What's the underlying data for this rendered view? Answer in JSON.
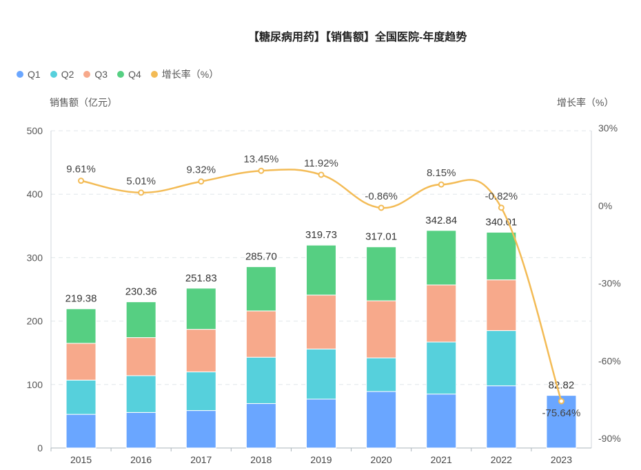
{
  "chart_data": {
    "type": "bar",
    "title": "【糖尿病用药】【销售额】全国医院-年度趋势",
    "categories": [
      "2015",
      "2016",
      "2017",
      "2018",
      "2019",
      "2020",
      "2021",
      "2022",
      "2023"
    ],
    "ylabel": "销售额（亿元）",
    "y2label": "增长率（%）",
    "ylim": [
      0,
      500
    ],
    "yticks": [
      "0",
      "100",
      "200",
      "300",
      "400",
      "500"
    ],
    "y2lim": [
      -90,
      30
    ],
    "y2ticks": [
      "-90%",
      "-60%",
      "-30%",
      "0%",
      "30%"
    ],
    "grid": true,
    "legend_position": "top-left",
    "stacked": true,
    "series": [
      {
        "name": "Q1",
        "color": "#6aa6ff",
        "values": [
          53,
          56,
          59,
          70,
          77,
          89,
          85,
          98,
          82.82
        ]
      },
      {
        "name": "Q2",
        "color": "#56d0dc",
        "values": [
          54,
          58,
          61,
          73,
          79,
          53,
          82,
          87,
          0
        ]
      },
      {
        "name": "Q3",
        "color": "#f7a98b",
        "values": [
          58,
          60,
          67,
          73,
          85,
          90,
          90,
          80,
          0
        ]
      },
      {
        "name": "Q4",
        "color": "#56cf82",
        "values": [
          54.38,
          56.36,
          64.83,
          69.7,
          78.73,
          85.01,
          85.84,
          75.01,
          0
        ]
      }
    ],
    "totals": [
      "219.38",
      "230.36",
      "251.83",
      "285.70",
      "319.73",
      "317.01",
      "342.84",
      "340.01",
      "82.82"
    ],
    "line": {
      "name": "增长率（%）",
      "color": "#f3bb55",
      "axis": "right",
      "values": [
        9.61,
        5.01,
        9.32,
        13.45,
        11.92,
        -0.86,
        8.15,
        -0.82,
        -75.64
      ],
      "labels": [
        "9.61%",
        "5.01%",
        "9.32%",
        "13.45%",
        "11.92%",
        "-0.86%",
        "8.15%",
        "-0.82%",
        "-75.64%"
      ]
    }
  }
}
